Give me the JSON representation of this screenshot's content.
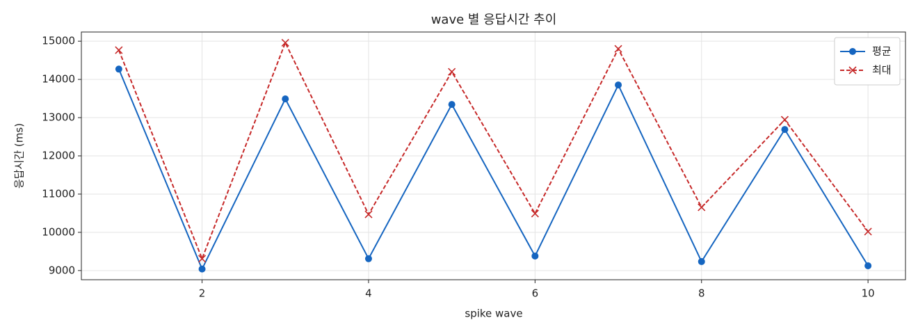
{
  "chart_data": {
    "type": "line",
    "title": "wave 별 응답시간 추이",
    "x_label": "spike wave",
    "y_label": "응답시간 (ms)",
    "x": [
      1,
      2,
      3,
      4,
      5,
      6,
      7,
      8,
      9,
      10
    ],
    "series": [
      {
        "name": "평균",
        "color": "#1565c0",
        "marker": "circle",
        "linestyle": "solid",
        "values": [
          14270,
          9040,
          13490,
          9310,
          13345,
          9380,
          13855,
          9235,
          12690,
          9125
        ]
      },
      {
        "name": "최대",
        "color": "#c62828",
        "marker": "x",
        "linestyle": "dashed",
        "values": [
          14765,
          9310,
          14960,
          10470,
          14200,
          10490,
          14800,
          10655,
          12945,
          10020
        ]
      }
    ],
    "xlim": [
      0.55,
      10.45
    ],
    "xticks": [
      2,
      4,
      6,
      8,
      10
    ],
    "ylim": [
      8760,
      15240
    ],
    "yticks": [
      9000,
      10000,
      11000,
      12000,
      13000,
      14000,
      15000
    ],
    "grid": true,
    "legend": "upper right"
  }
}
